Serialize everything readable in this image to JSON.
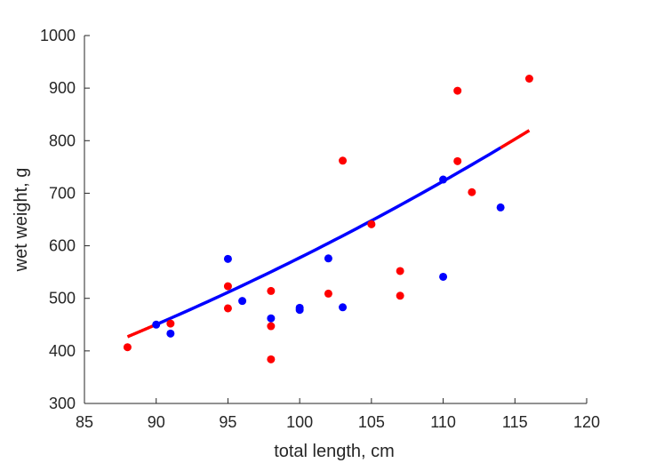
{
  "chart_data": {
    "type": "scatter",
    "xlabel": "total length, cm",
    "ylabel": "wet weight, g",
    "xlim": [
      85,
      120
    ],
    "ylim": [
      300,
      1000
    ],
    "xticks": [
      "85",
      "90",
      "95",
      "100",
      "105",
      "110",
      "115",
      "120"
    ],
    "yticks": [
      "300",
      "400",
      "500",
      "600",
      "700",
      "800",
      "900",
      "1000"
    ],
    "grid": false,
    "box": false,
    "colors": {
      "blue": "#0000ff",
      "red": "#ff0000",
      "axis": "#262626"
    },
    "series": [
      {
        "color": "#0000ff",
        "points": [
          [
            90,
            450
          ],
          [
            91,
            433
          ],
          [
            95,
            575
          ],
          [
            96,
            495
          ],
          [
            98,
            462
          ],
          [
            100,
            482
          ],
          [
            100,
            478
          ],
          [
            102,
            576
          ],
          [
            103,
            483
          ],
          [
            110,
            726
          ],
          [
            110,
            541
          ],
          [
            114,
            673
          ]
        ]
      },
      {
        "color": "#ff0000",
        "points": [
          [
            88,
            407
          ],
          [
            91,
            452
          ],
          [
            95,
            523
          ],
          [
            95,
            481
          ],
          [
            98,
            514
          ],
          [
            98,
            447
          ],
          [
            98,
            384
          ],
          [
            102,
            509
          ],
          [
            103,
            762
          ],
          [
            105,
            641
          ],
          [
            107,
            552
          ],
          [
            107,
            505
          ],
          [
            111,
            895
          ],
          [
            111,
            761
          ],
          [
            112,
            702
          ],
          [
            116,
            918
          ]
        ]
      }
    ],
    "fit_curve": {
      "form": "power",
      "a": 0.011,
      "b": 2.36,
      "segments": [
        {
          "from": 88,
          "to": 90,
          "color": "#ff0000"
        },
        {
          "from": 90,
          "to": 114,
          "color": "#0000ff"
        },
        {
          "from": 114,
          "to": 116,
          "color": "#ff0000"
        }
      ]
    }
  }
}
